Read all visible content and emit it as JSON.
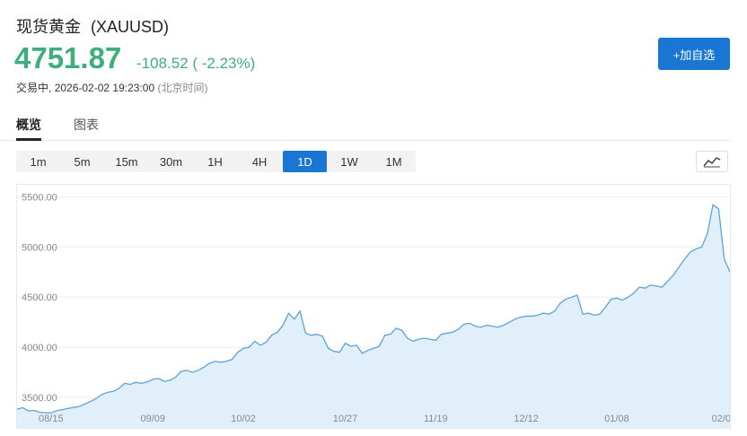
{
  "header": {
    "title": "现货黄金",
    "symbol": "(XAUUSD)",
    "price": "4751.87",
    "change": "-108.52 ( -2.23%)",
    "status": "交易中,",
    "datetime": "2026-02-02 19:23:00",
    "timezone": "(北京时间)",
    "price_color": "#3fae7c"
  },
  "actions": {
    "add_watchlist": "+加自选"
  },
  "tabs": [
    {
      "label": "概览",
      "active": true
    },
    {
      "label": "图表",
      "active": false
    }
  ],
  "intervals": [
    {
      "label": "1m",
      "active": false
    },
    {
      "label": "5m",
      "active": false
    },
    {
      "label": "15m",
      "active": false
    },
    {
      "label": "30m",
      "active": false
    },
    {
      "label": "1H",
      "active": false
    },
    {
      "label": "4H",
      "active": false
    },
    {
      "label": "1D",
      "active": true
    },
    {
      "label": "1W",
      "active": false
    },
    {
      "label": "1M",
      "active": false
    }
  ],
  "chart_type_icon": "line-chart-icon",
  "chart_data": {
    "type": "area",
    "title": "",
    "xlabel": "",
    "ylabel": "",
    "ylim": [
      3330,
      5620
    ],
    "y_ticks": [
      "3500.00",
      "4000.00",
      "4500.00",
      "5000.00",
      "5500.00"
    ],
    "y_tick_values": [
      3500,
      4000,
      4500,
      5000,
      5500
    ],
    "x_ticks": [
      "08/15",
      "09/09",
      "10/02",
      "10/27",
      "11/19",
      "12/12",
      "01/08",
      "02/0"
    ],
    "x_tick_index": [
      6,
      24,
      40,
      58,
      74,
      90,
      106,
      120
    ],
    "grid": true,
    "line_color": "#5ba3d9",
    "fill_color": "#e1effb",
    "series": [
      {
        "values": [
          3382,
          3398,
          3365,
          3370,
          3352,
          3348,
          3345,
          3368,
          3378,
          3390,
          3400,
          3410,
          3435,
          3460,
          3490,
          3530,
          3550,
          3560,
          3590,
          3640,
          3630,
          3650,
          3640,
          3655,
          3680,
          3690,
          3660,
          3670,
          3700,
          3760,
          3770,
          3750,
          3770,
          3800,
          3840,
          3860,
          3850,
          3860,
          3880,
          3950,
          3990,
          4000,
          4060,
          4020,
          4050,
          4120,
          4150,
          4220,
          4340,
          4280,
          4360,
          4140,
          4120,
          4130,
          4110,
          3990,
          3960,
          3950,
          4040,
          4010,
          4020,
          3940,
          3970,
          3990,
          4010,
          4120,
          4130,
          4190,
          4170,
          4090,
          4060,
          4080,
          4090,
          4080,
          4070,
          4130,
          4140,
          4150,
          4180,
          4230,
          4240,
          4210,
          4200,
          4220,
          4210,
          4200,
          4220,
          4250,
          4280,
          4300,
          4310,
          4310,
          4320,
          4340,
          4330,
          4360,
          4440,
          4480,
          4500,
          4520,
          4330,
          4340,
          4320,
          4330,
          4400,
          4480,
          4490,
          4470,
          4500,
          4540,
          4600,
          4590,
          4620,
          4610,
          4600,
          4660,
          4720,
          4800,
          4880,
          4950,
          4980,
          5000,
          5130,
          5420,
          5380,
          4880,
          4752
        ]
      }
    ]
  }
}
